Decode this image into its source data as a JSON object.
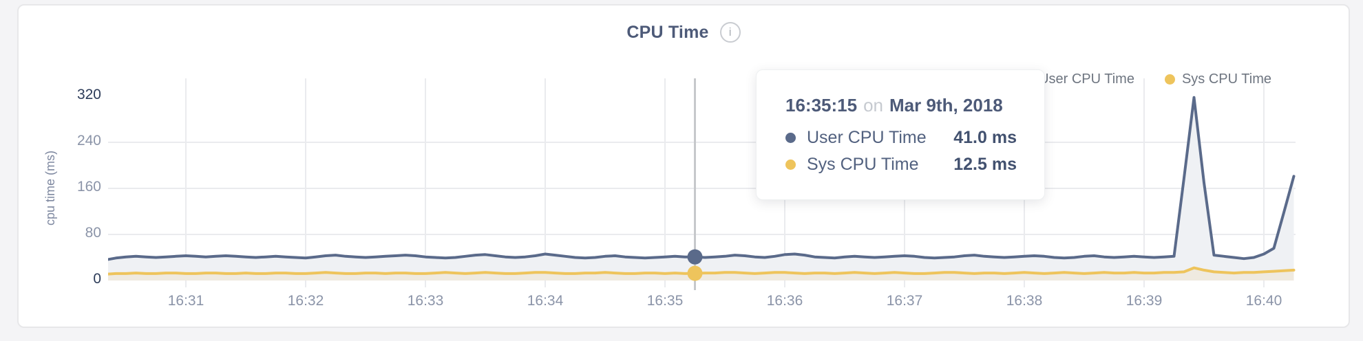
{
  "header": {
    "title": "CPU Time",
    "info_icon": "i"
  },
  "legend": {
    "items": [
      {
        "label": "User CPU Time",
        "color": "#5a6a8a"
      },
      {
        "label": "Sys CPU Time",
        "color": "#eec45c"
      }
    ]
  },
  "tooltip": {
    "time": "16:35:15",
    "conjunction": "on",
    "date": "Mar 9th, 2018",
    "rows": [
      {
        "label": "User CPU Time",
        "value": "41.0 ms",
        "color": "#5a6a8a"
      },
      {
        "label": "Sys CPU Time",
        "value": "12.5 ms",
        "color": "#eec45c"
      }
    ]
  },
  "chart_data": {
    "type": "area",
    "title": "CPU Time",
    "ylabel": "cpu time (ms)",
    "ylim": [
      0,
      320
    ],
    "yticks": [
      0,
      80,
      160,
      240,
      320
    ],
    "xticks": [
      "16:31",
      "16:32",
      "16:33",
      "16:34",
      "16:35",
      "16:36",
      "16:37",
      "16:38",
      "16:39",
      "16:40"
    ],
    "x_start": "16:30:20",
    "x_interval_seconds": 5,
    "grid": true,
    "legend_position": "top-right",
    "crosshair_color": "#c6c8cb",
    "gridline_color": "#eaebee",
    "highlight": {
      "index": 59,
      "time": "16:35:15",
      "user_value_ms": 41.0,
      "sys_value_ms": 12.5
    },
    "series": [
      {
        "name": "User CPU Time",
        "color": "#5a6a8a",
        "fill": "#eff1f4",
        "values": [
          36,
          39,
          41,
          42,
          41,
          40,
          41,
          42,
          43,
          42,
          41,
          42,
          43,
          42,
          41,
          40,
          41,
          42,
          41,
          40,
          39,
          41,
          43,
          44,
          42,
          41,
          40,
          41,
          42,
          43,
          44,
          43,
          41,
          40,
          39,
          40,
          42,
          44,
          45,
          43,
          41,
          40,
          41,
          43,
          46,
          44,
          42,
          40,
          39,
          40,
          42,
          43,
          41,
          40,
          39,
          40,
          41,
          42,
          41,
          41,
          40,
          41,
          42,
          44,
          43,
          41,
          40,
          42,
          45,
          46,
          44,
          41,
          40,
          39,
          41,
          42,
          41,
          40,
          41,
          42,
          43,
          42,
          40,
          39,
          40,
          41,
          43,
          44,
          42,
          41,
          40,
          41,
          42,
          43,
          42,
          40,
          39,
          40,
          42,
          43,
          41,
          40,
          41,
          42,
          41,
          40,
          41,
          42,
          178,
          318,
          170,
          44,
          42,
          40,
          38,
          40,
          46,
          56,
          118,
          181
        ]
      },
      {
        "name": "Sys CPU Time",
        "color": "#eec45c",
        "fill": "rgba(238,196,92,0.13)",
        "values": [
          11,
          12,
          12,
          13,
          12,
          12,
          13,
          13,
          12,
          12,
          13,
          13,
          12,
          12,
          13,
          12,
          12,
          13,
          13,
          12,
          12,
          13,
          14,
          13,
          12,
          12,
          13,
          13,
          12,
          13,
          13,
          12,
          12,
          13,
          14,
          13,
          12,
          13,
          14,
          13,
          12,
          12,
          13,
          14,
          14,
          13,
          12,
          12,
          13,
          13,
          14,
          13,
          12,
          12,
          13,
          13,
          12,
          13,
          12,
          12.5,
          13,
          13,
          14,
          14,
          13,
          12,
          13,
          14,
          14,
          13,
          12,
          13,
          13,
          12,
          13,
          14,
          13,
          12,
          13,
          14,
          13,
          12,
          12,
          13,
          14,
          14,
          13,
          12,
          13,
          13,
          12,
          13,
          14,
          13,
          12,
          13,
          14,
          13,
          12,
          13,
          14,
          13,
          13,
          14,
          13,
          13,
          14,
          14,
          15,
          22,
          18,
          15,
          14,
          13,
          14,
          14,
          15,
          16,
          17,
          18
        ]
      }
    ]
  }
}
